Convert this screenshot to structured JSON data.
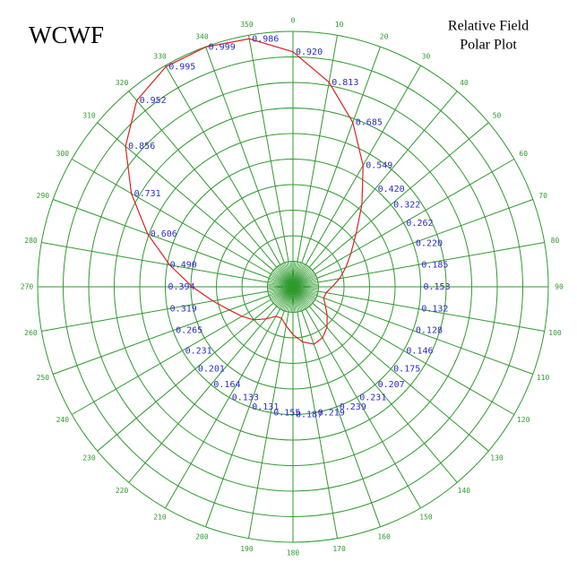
{
  "chart_data": {
    "type": "polar",
    "title": "WCWF",
    "subtitle_lines": [
      "Relative Field",
      "Polar Plot"
    ],
    "theta": [
      0,
      10,
      20,
      30,
      40,
      50,
      60,
      70,
      80,
      90,
      100,
      110,
      120,
      130,
      140,
      150,
      160,
      170,
      180,
      190,
      200,
      210,
      220,
      230,
      240,
      250,
      260,
      270,
      280,
      290,
      300,
      310,
      320,
      330,
      340,
      350
    ],
    "values": [
      0.92,
      0.813,
      0.685,
      0.549,
      0.42,
      0.322,
      0.262,
      0.22,
      0.185,
      0.153,
      0.132,
      0.128,
      0.146,
      0.175,
      0.207,
      0.231,
      0.239,
      0.219,
      0.187,
      0.155,
      0.131,
      0.133,
      0.164,
      0.201,
      0.231,
      0.265,
      0.319,
      0.394,
      0.49,
      0.606,
      0.731,
      0.856,
      0.952,
      0.995,
      0.999,
      0.986
    ],
    "value_labels": [
      "0.920",
      "0.813",
      "0.685",
      "0.549",
      "0.420",
      "0.322",
      "0.262",
      "0.220",
      "0.185",
      "0.153",
      "0.132",
      "0.128",
      "0.146",
      "0.175",
      "0.207",
      "0.231",
      "0.239",
      "0.219",
      "0.187",
      "0.155",
      "0.131",
      "0.133",
      "0.164",
      "0.201",
      "0.231",
      "0.265",
      "0.319",
      "0.394",
      "0.490",
      "0.606",
      "0.731",
      "0.856",
      "0.952",
      "0.995",
      "0.999",
      "0.986"
    ],
    "thetaticks": [
      0,
      10,
      20,
      30,
      40,
      50,
      60,
      70,
      80,
      90,
      100,
      110,
      120,
      130,
      140,
      150,
      160,
      170,
      180,
      190,
      200,
      210,
      220,
      230,
      240,
      250,
      260,
      270,
      280,
      290,
      300,
      310,
      320,
      330,
      340,
      350
    ],
    "rlim": [
      0,
      1
    ],
    "rticks": [
      0.1,
      0.2,
      0.3,
      0.4,
      0.5,
      0.6,
      0.7,
      0.8,
      0.9,
      1
    ],
    "color": "#e02020",
    "grid_color": "#2e9a2e",
    "label_color": "#2b2bc8",
    "grid": true
  }
}
